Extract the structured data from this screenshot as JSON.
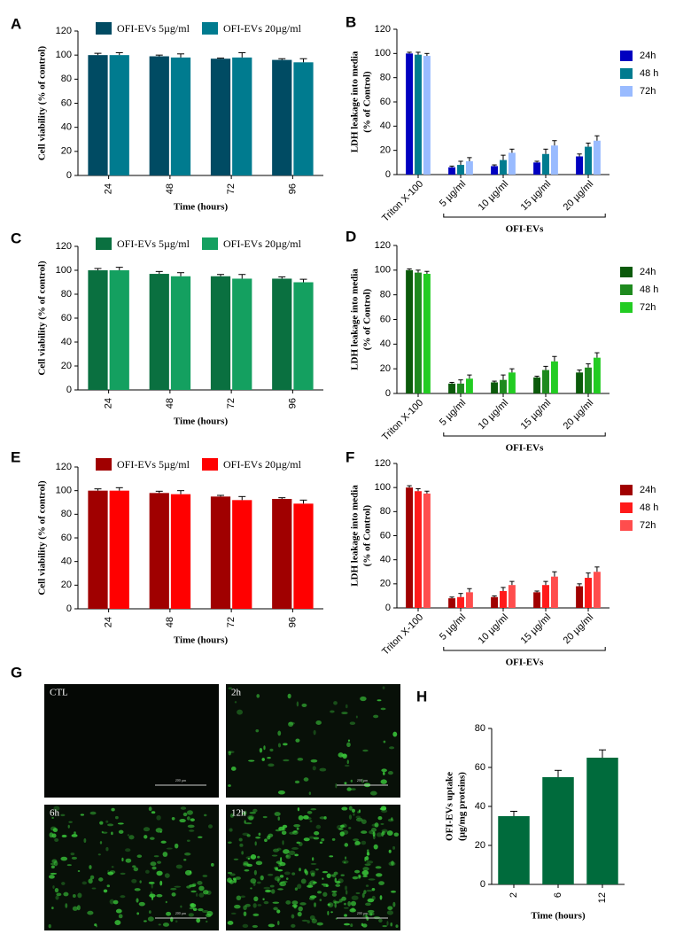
{
  "chart_data": [
    {
      "type": "bar",
      "label": "A",
      "ylabel": [
        "Cell viability (% of control)"
      ],
      "xlabel": "Time (hours)",
      "legend": "top",
      "categories": [
        "24",
        "48",
        "72",
        "96"
      ],
      "series": [
        {
          "name": "OFI-EVs 5µg/ml",
          "color": "#004b63",
          "values": [
            100,
            99,
            97,
            96
          ],
          "errors": [
            1.5,
            1,
            0.5,
            1
          ]
        },
        {
          "name": "OFI-EVs 20µg/ml",
          "color": "#007b8f",
          "values": [
            100,
            98,
            98,
            94
          ],
          "errors": [
            2,
            3,
            4,
            3
          ]
        }
      ],
      "ylim": [
        0,
        120
      ],
      "yticks": [
        0,
        20,
        40,
        60,
        80,
        100,
        120
      ]
    },
    {
      "type": "bar",
      "label": "B",
      "ylabel": [
        "LDH leakage into media",
        "(% of Control)"
      ],
      "group_label": "OFI-EVs",
      "legend": "right",
      "categories": [
        "Triton X-100",
        "5 µg/ml",
        "10 µg/ml",
        "15 µg/ml",
        "20 µg/ml"
      ],
      "series": [
        {
          "name": "24h",
          "color": "#0000c0",
          "values": [
            100,
            6,
            7,
            10,
            15
          ],
          "errors": [
            1,
            1,
            1,
            1,
            2
          ]
        },
        {
          "name": "48 h",
          "color": "#007b8f",
          "values": [
            99,
            8,
            12,
            17,
            23
          ],
          "errors": [
            2,
            3,
            4,
            4,
            3
          ]
        },
        {
          "name": "72h",
          "color": "#99bbff",
          "values": [
            98,
            11,
            18,
            24,
            28
          ],
          "errors": [
            2,
            3,
            3,
            4,
            4
          ]
        }
      ],
      "ylim": [
        0,
        120
      ],
      "yticks": [
        0,
        20,
        40,
        60,
        80,
        100,
        120
      ]
    },
    {
      "type": "bar",
      "label": "C",
      "ylabel": [
        "Cell viability (% of control)"
      ],
      "xlabel": "Time (hours)",
      "legend": "top",
      "categories": [
        "24",
        "48",
        "72",
        "96"
      ],
      "series": [
        {
          "name": "OFI-EVs 5µg/ml",
          "color": "#0a7040",
          "values": [
            100,
            97,
            95,
            93
          ],
          "errors": [
            1.5,
            2,
            1.5,
            1.5
          ]
        },
        {
          "name": "OFI-EVs 20µg/ml",
          "color": "#14a060",
          "values": [
            100,
            95,
            93,
            90
          ],
          "errors": [
            2.5,
            3,
            3.5,
            2.5
          ]
        }
      ],
      "ylim": [
        0,
        120
      ],
      "yticks": [
        0,
        20,
        40,
        60,
        80,
        100,
        120
      ]
    },
    {
      "type": "bar",
      "label": "D",
      "ylabel": [
        "LDH leakage into media",
        "(% of Control)"
      ],
      "group_label": "OFI-EVs",
      "legend": "right",
      "categories": [
        "Triton X-100",
        "5 µg/ml",
        "10 µg/ml",
        "15 µg/ml",
        "20 µg/ml"
      ],
      "series": [
        {
          "name": "24h",
          "color": "#0b5a0b",
          "values": [
            100,
            8,
            9,
            13,
            17
          ],
          "errors": [
            1,
            1,
            1,
            1,
            2
          ]
        },
        {
          "name": "48 h",
          "color": "#1e8a1e",
          "values": [
            98,
            8,
            11,
            19,
            21
          ],
          "errors": [
            2,
            3,
            4,
            3,
            3
          ]
        },
        {
          "name": "72h",
          "color": "#22cc22",
          "values": [
            97,
            12,
            17,
            26,
            29
          ],
          "errors": [
            2,
            3,
            3,
            4,
            4
          ]
        }
      ],
      "ylim": [
        0,
        120
      ],
      "yticks": [
        0,
        20,
        40,
        60,
        80,
        100,
        120
      ]
    },
    {
      "type": "bar",
      "label": "E",
      "ylabel": [
        "Cell viability (% of control)"
      ],
      "xlabel": "Time (hours)",
      "legend": "top",
      "categories": [
        "24",
        "48",
        "72",
        "96"
      ],
      "series": [
        {
          "name": "OFI-EVs 5µg/ml",
          "color": "#a00000",
          "values": [
            100,
            98,
            95,
            93
          ],
          "errors": [
            1.5,
            1.5,
            1,
            1
          ]
        },
        {
          "name": "OFI-EVs 20µg/ml",
          "color": "#ff0000",
          "values": [
            100,
            97,
            92,
            89
          ],
          "errors": [
            2.5,
            3,
            3,
            3
          ]
        }
      ],
      "ylim": [
        0,
        120
      ],
      "yticks": [
        0,
        20,
        40,
        60,
        80,
        100,
        120
      ]
    },
    {
      "type": "bar",
      "label": "F",
      "ylabel": [
        "LDH leakage into media",
        "(% of Control)"
      ],
      "group_label": "OFI-EVs",
      "legend": "right",
      "categories": [
        "Triton X-100",
        "5 µg/ml",
        "10 µg/ml",
        "15 µg/ml",
        "20 µg/ml"
      ],
      "series": [
        {
          "name": "24h",
          "color": "#a00000",
          "values": [
            100,
            8,
            9,
            13,
            18
          ],
          "errors": [
            1.5,
            1,
            1,
            1,
            2
          ]
        },
        {
          "name": "48 h",
          "color": "#ff1a1a",
          "values": [
            97,
            9,
            14,
            19,
            25
          ],
          "errors": [
            2,
            3,
            3,
            3,
            4
          ]
        },
        {
          "name": "72h",
          "color": "#ff4d4d",
          "values": [
            95,
            13,
            19,
            26,
            30
          ],
          "errors": [
            2,
            3,
            3,
            4,
            4
          ]
        }
      ],
      "ylim": [
        0,
        120
      ],
      "yticks": [
        0,
        20,
        40,
        60,
        80,
        100,
        120
      ]
    },
    {
      "type": "image-grid",
      "label": "G",
      "images": [
        "CTL",
        "2h",
        "6h",
        "12h"
      ],
      "scale_bar": "200 µm"
    },
    {
      "type": "bar",
      "label": "H",
      "ylabel": [
        "OFI-EVs uptake",
        "(µg/mg proteins)"
      ],
      "xlabel": "Time (hours)",
      "categories": [
        "2",
        "6",
        "12"
      ],
      "values": [
        35,
        55,
        65
      ],
      "errors": [
        2.5,
        3.5,
        4
      ],
      "color": "#006b3c",
      "ylim": [
        0,
        80
      ],
      "yticks": [
        0,
        20,
        40,
        60,
        80
      ]
    }
  ]
}
